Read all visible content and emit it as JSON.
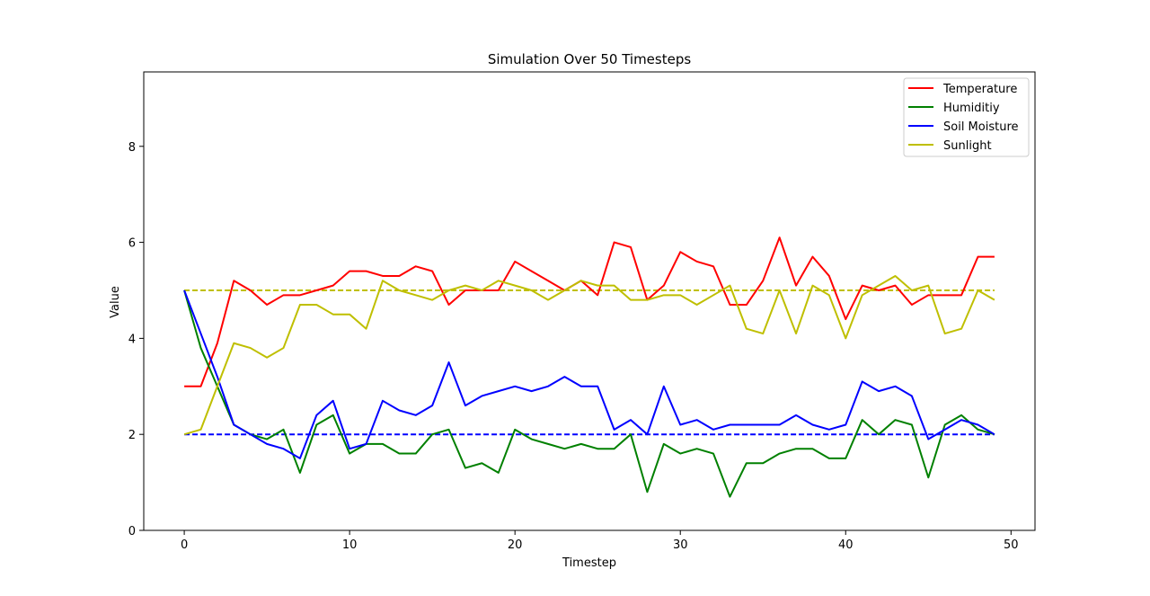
{
  "chart_data": {
    "type": "line",
    "title": "Simulation Over 50 Timesteps",
    "xlabel": "Timestep",
    "ylabel": "Value",
    "xlim": [
      -2.45,
      51.45
    ],
    "ylim": [
      0,
      9.55
    ],
    "xticks": [
      0,
      10,
      20,
      30,
      40,
      50
    ],
    "yticks": [
      0,
      2,
      4,
      6,
      8
    ],
    "grid": false,
    "legend_position": "top-right",
    "x": [
      0,
      1,
      2,
      3,
      4,
      5,
      6,
      7,
      8,
      9,
      10,
      11,
      12,
      13,
      14,
      15,
      16,
      17,
      18,
      19,
      20,
      21,
      22,
      23,
      24,
      25,
      26,
      27,
      28,
      29,
      30,
      31,
      32,
      33,
      34,
      35,
      36,
      37,
      38,
      39,
      40,
      41,
      42,
      43,
      44,
      45,
      46,
      47,
      48,
      49
    ],
    "series": [
      {
        "name": "Temperature",
        "color": "#ff0000",
        "values": [
          3.0,
          3.0,
          3.9,
          5.2,
          5.0,
          4.7,
          4.9,
          4.9,
          5.0,
          5.1,
          5.4,
          5.4,
          5.3,
          5.3,
          5.5,
          5.4,
          4.7,
          5.0,
          5.0,
          5.0,
          5.6,
          5.4,
          5.2,
          5.0,
          5.2,
          4.9,
          6.0,
          5.9,
          4.8,
          5.1,
          5.8,
          5.6,
          5.5,
          4.7,
          4.7,
          5.2,
          6.1,
          5.1,
          5.7,
          5.3,
          4.4,
          5.1,
          5.0,
          5.1,
          4.7,
          4.9,
          4.9,
          4.9,
          5.7,
          5.7
        ]
      },
      {
        "name": "Humiditiy",
        "color": "#008000",
        "values": [
          5.0,
          3.8,
          3.0,
          2.2,
          2.0,
          1.9,
          2.1,
          1.2,
          2.2,
          2.4,
          1.6,
          1.8,
          1.8,
          1.6,
          1.6,
          2.0,
          2.1,
          1.3,
          1.4,
          1.2,
          2.1,
          1.9,
          1.8,
          1.7,
          1.8,
          1.7,
          1.7,
          2.0,
          0.8,
          1.8,
          1.6,
          1.7,
          1.6,
          0.7,
          1.4,
          1.4,
          1.6,
          1.7,
          1.7,
          1.5,
          1.5,
          2.3,
          2.0,
          2.3,
          2.2,
          1.1,
          2.2,
          2.4,
          2.1,
          2.0
        ]
      },
      {
        "name": "Soil Moisture",
        "color": "#0000ff",
        "values": [
          5.0,
          4.1,
          3.2,
          2.2,
          2.0,
          1.8,
          1.7,
          1.5,
          2.4,
          2.7,
          1.7,
          1.8,
          2.7,
          2.5,
          2.4,
          2.6,
          3.5,
          2.6,
          2.8,
          2.9,
          3.0,
          2.9,
          3.0,
          3.2,
          3.0,
          3.0,
          2.1,
          2.3,
          2.0,
          3.0,
          2.2,
          2.3,
          2.1,
          2.2,
          2.2,
          2.2,
          2.2,
          2.4,
          2.2,
          2.1,
          2.2,
          3.1,
          2.9,
          3.0,
          2.8,
          1.9,
          2.1,
          2.3,
          2.2,
          2.0
        ]
      },
      {
        "name": "Sunlight",
        "color": "#bfbf00",
        "values": [
          2.0,
          2.1,
          3.0,
          3.9,
          3.8,
          3.6,
          3.8,
          4.7,
          4.7,
          4.5,
          4.5,
          4.2,
          5.2,
          5.0,
          4.9,
          4.8,
          5.0,
          5.1,
          5.0,
          5.2,
          5.1,
          5.0,
          4.8,
          5.0,
          5.2,
          5.1,
          5.1,
          4.8,
          4.8,
          4.9,
          4.9,
          4.7,
          4.9,
          5.1,
          4.2,
          4.1,
          5.0,
          4.1,
          5.1,
          4.9,
          4.0,
          4.9,
          5.1,
          5.3,
          5.0,
          5.1,
          4.1,
          4.2,
          5.0,
          4.8
        ]
      }
    ],
    "reference_lines": [
      {
        "y": 5.0,
        "color": "#bfbf00",
        "style": "dashed",
        "x_range": [
          0,
          49
        ]
      },
      {
        "y": 2.0,
        "color": "#0000ff",
        "style": "dashed",
        "x_range": [
          0,
          49
        ]
      }
    ]
  }
}
